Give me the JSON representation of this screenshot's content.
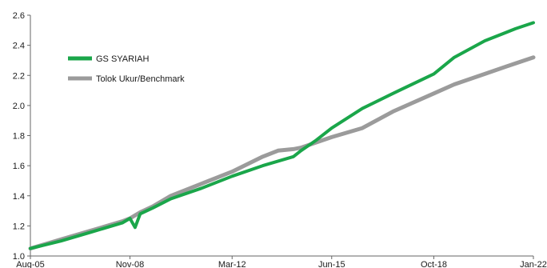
{
  "chart_data": {
    "type": "line",
    "title": "",
    "xlabel": "",
    "ylabel": "",
    "x_ticks": [
      "Aug-05",
      "Nov-08",
      "Mar-12",
      "Jun-15",
      "Oct-18",
      "Jan-22"
    ],
    "y_ticks": [
      "1.0",
      "1.2",
      "1.4",
      "1.6",
      "1.8",
      "2.0",
      "2.2",
      "2.4",
      "2.6"
    ],
    "ylim": [
      1.0,
      2.6
    ],
    "xlim": [
      "Aug-05",
      "Jan-22"
    ],
    "grid": false,
    "legend_position": "top-left",
    "series": [
      {
        "name": "GS SYARIAH",
        "color": "#1aa64a",
        "x": [
          "Aug-05",
          "Aug-06",
          "Aug-07",
          "Aug-08",
          "Nov-08",
          "Jan-09",
          "Mar-09",
          "Aug-09",
          "Mar-10",
          "Mar-11",
          "Mar-12",
          "Mar-13",
          "Mar-14",
          "Jun-14",
          "Dec-14",
          "Jun-15",
          "Jun-16",
          "Jun-17",
          "Oct-18",
          "Jun-19",
          "Jun-20",
          "Jun-21",
          "Jan-22"
        ],
        "values": [
          1.05,
          1.1,
          1.16,
          1.22,
          1.25,
          1.19,
          1.28,
          1.32,
          1.38,
          1.45,
          1.53,
          1.6,
          1.66,
          1.7,
          1.77,
          1.85,
          1.98,
          2.08,
          2.21,
          2.32,
          2.43,
          2.51,
          2.55
        ]
      },
      {
        "name": "Tolok Ukur/Benchmark",
        "color": "#9b9b9b",
        "x": [
          "Aug-05",
          "Aug-06",
          "Aug-07",
          "Aug-08",
          "Nov-08",
          "Mar-09",
          "Aug-09",
          "Mar-10",
          "Mar-11",
          "Mar-12",
          "Mar-13",
          "Sep-13",
          "Mar-14",
          "Jun-14",
          "Jun-15",
          "Jun-16",
          "Jun-17",
          "Oct-18",
          "Jun-19",
          "Jun-20",
          "Jun-21",
          "Jan-22"
        ],
        "values": [
          1.05,
          1.11,
          1.17,
          1.23,
          1.25,
          1.29,
          1.33,
          1.4,
          1.48,
          1.56,
          1.66,
          1.7,
          1.71,
          1.72,
          1.79,
          1.85,
          1.96,
          2.08,
          2.14,
          2.21,
          2.28,
          2.32
        ]
      }
    ]
  }
}
